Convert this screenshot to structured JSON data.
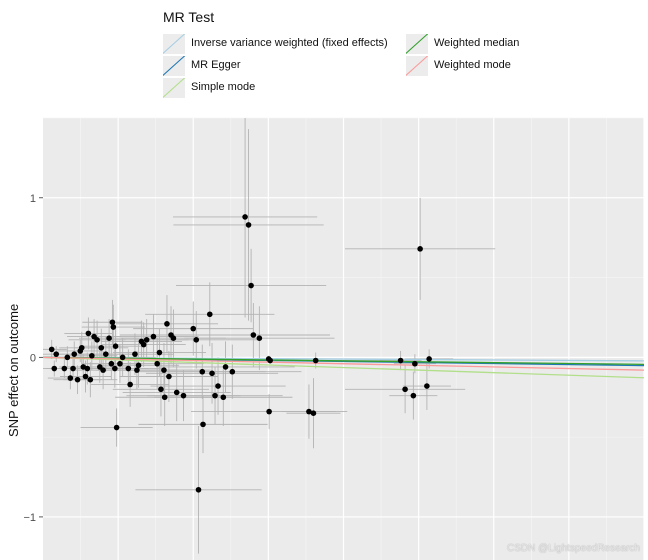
{
  "legend": {
    "title": "MR Test",
    "items": [
      {
        "label": "Inverse variance weighted (fixed effects)",
        "color": "#a6cee3"
      },
      {
        "label": "Weighted median",
        "color": "#33a02c"
      },
      {
        "label": "MR Egger",
        "color": "#1f78b4"
      },
      {
        "label": "Weighted mode",
        "color": "#fb9a99"
      },
      {
        "label": "Simple mode",
        "color": "#b2df8a"
      }
    ]
  },
  "watermark": "CSDN @LightspeedResearch",
  "chart_data": {
    "type": "scatter",
    "ylabel": "SNP effect on outcome",
    "ytick_labels": [
      "1",
      "0",
      "−1"
    ],
    "yticks": [
      1,
      0,
      -1
    ],
    "xlim": [
      0,
      0.4
    ],
    "ylim": [
      -1.27,
      1.5
    ],
    "grid": true,
    "panel_background": "#ebebeb",
    "points": [
      {
        "x": 0.0058,
        "y": 0.05,
        "xe": 0.01,
        "ye": 0.06
      },
      {
        "x": 0.0075,
        "y": -0.07,
        "xe": 0.012,
        "ye": 0.05
      },
      {
        "x": 0.0088,
        "y": 0.02,
        "xe": 0.01,
        "ye": 0.05
      },
      {
        "x": 0.0142,
        "y": -0.07,
        "xe": 0.012,
        "ye": 0.06
      },
      {
        "x": 0.0162,
        "y": 0.0,
        "xe": 0.014,
        "ye": 0.07
      },
      {
        "x": 0.0182,
        "y": -0.13,
        "xe": 0.015,
        "ye": 0.07
      },
      {
        "x": 0.02,
        "y": -0.07,
        "xe": 0.013,
        "ye": 0.06
      },
      {
        "x": 0.0208,
        "y": 0.02,
        "xe": 0.014,
        "ye": 0.08
      },
      {
        "x": 0.023,
        "y": -0.14,
        "xe": 0.016,
        "ye": 0.09
      },
      {
        "x": 0.0248,
        "y": 0.04,
        "xe": 0.015,
        "ye": 0.07
      },
      {
        "x": 0.0258,
        "y": 0.06,
        "xe": 0.015,
        "ye": 0.1
      },
      {
        "x": 0.0268,
        "y": -0.06,
        "xe": 0.016,
        "ye": 0.08
      },
      {
        "x": 0.0283,
        "y": -0.12,
        "xe": 0.017,
        "ye": 0.1
      },
      {
        "x": 0.0295,
        "y": -0.07,
        "xe": 0.015,
        "ye": 0.1
      },
      {
        "x": 0.0302,
        "y": 0.15,
        "xe": 0.016,
        "ye": 0.1
      },
      {
        "x": 0.0315,
        "y": -0.14,
        "xe": 0.018,
        "ye": 0.11
      },
      {
        "x": 0.0325,
        "y": 0.01,
        "xe": 0.017,
        "ye": 0.09
      },
      {
        "x": 0.034,
        "y": 0.13,
        "xe": 0.018,
        "ye": 0.11
      },
      {
        "x": 0.036,
        "y": 0.11,
        "xe": 0.019,
        "ye": 0.12
      },
      {
        "x": 0.0378,
        "y": -0.06,
        "xe": 0.018,
        "ye": 0.1
      },
      {
        "x": 0.0388,
        "y": 0.06,
        "xe": 0.018,
        "ye": 0.12
      },
      {
        "x": 0.04,
        "y": -0.08,
        "xe": 0.02,
        "ye": 0.12
      },
      {
        "x": 0.0418,
        "y": 0.02,
        "xe": 0.019,
        "ye": 0.11
      },
      {
        "x": 0.044,
        "y": 0.12,
        "xe": 0.02,
        "ye": 0.12
      },
      {
        "x": 0.0455,
        "y": -0.04,
        "xe": 0.02,
        "ye": 0.1
      },
      {
        "x": 0.0462,
        "y": 0.22,
        "xe": 0.02,
        "ye": 0.14
      },
      {
        "x": 0.0468,
        "y": 0.19,
        "xe": 0.021,
        "ye": 0.14
      },
      {
        "x": 0.0478,
        "y": -0.07,
        "xe": 0.022,
        "ye": 0.12
      },
      {
        "x": 0.0483,
        "y": 0.07,
        "xe": 0.021,
        "ye": 0.12
      },
      {
        "x": 0.049,
        "y": -0.44,
        "xe": 0.024,
        "ye": 0.12
      },
      {
        "x": 0.0512,
        "y": -0.04,
        "xe": 0.022,
        "ye": 0.12
      },
      {
        "x": 0.053,
        "y": 0.0,
        "xe": 0.022,
        "ye": 0.12
      },
      {
        "x": 0.0568,
        "y": -0.07,
        "xe": 0.024,
        "ye": 0.12
      },
      {
        "x": 0.058,
        "y": -0.17,
        "xe": 0.026,
        "ye": 0.14
      },
      {
        "x": 0.0612,
        "y": 0.02,
        "xe": 0.026,
        "ye": 0.13
      },
      {
        "x": 0.0625,
        "y": -0.08,
        "xe": 0.027,
        "ye": 0.12
      },
      {
        "x": 0.0636,
        "y": -0.05,
        "xe": 0.027,
        "ye": 0.14
      },
      {
        "x": 0.0655,
        "y": 0.1,
        "xe": 0.027,
        "ye": 0.13
      },
      {
        "x": 0.067,
        "y": 0.08,
        "xe": 0.028,
        "ye": 0.14
      },
      {
        "x": 0.069,
        "y": 0.11,
        "xe": 0.028,
        "ye": 0.13
      },
      {
        "x": 0.0735,
        "y": 0.13,
        "xe": 0.03,
        "ye": 0.14
      },
      {
        "x": 0.076,
        "y": -0.04,
        "xe": 0.031,
        "ye": 0.16
      },
      {
        "x": 0.0775,
        "y": 0.03,
        "xe": 0.031,
        "ye": 0.15
      },
      {
        "x": 0.0785,
        "y": -0.2,
        "xe": 0.032,
        "ye": 0.17
      },
      {
        "x": 0.0805,
        "y": -0.08,
        "xe": 0.031,
        "ye": 0.17
      },
      {
        "x": 0.081,
        "y": -0.25,
        "xe": 0.033,
        "ye": 0.18
      },
      {
        "x": 0.0825,
        "y": 0.21,
        "xe": 0.034,
        "ye": 0.18
      },
      {
        "x": 0.0838,
        "y": -0.12,
        "xe": 0.033,
        "ye": 0.16
      },
      {
        "x": 0.0852,
        "y": 0.14,
        "xe": 0.034,
        "ye": 0.18
      },
      {
        "x": 0.0868,
        "y": 0.12,
        "xe": 0.035,
        "ye": 0.18
      },
      {
        "x": 0.089,
        "y": -0.22,
        "xe": 0.036,
        "ye": 0.18
      },
      {
        "x": 0.0935,
        "y": -0.24,
        "xe": 0.038,
        "ye": 0.16
      },
      {
        "x": 0.1,
        "y": 0.18,
        "xe": 0.04,
        "ye": 0.17
      },
      {
        "x": 0.102,
        "y": 0.11,
        "xe": 0.041,
        "ye": 0.18
      },
      {
        "x": 0.1035,
        "y": -0.83,
        "xe": 0.042,
        "ye": 0.4
      },
      {
        "x": 0.106,
        "y": -0.09,
        "xe": 0.042,
        "ye": 0.17
      },
      {
        "x": 0.1065,
        "y": -0.42,
        "xe": 0.043,
        "ye": 0.18
      },
      {
        "x": 0.111,
        "y": 0.27,
        "xe": 0.043,
        "ye": 0.2
      },
      {
        "x": 0.1125,
        "y": -0.1,
        "xe": 0.044,
        "ye": 0.19
      },
      {
        "x": 0.1145,
        "y": -0.24,
        "xe": 0.045,
        "ye": 0.18
      },
      {
        "x": 0.1165,
        "y": -0.18,
        "xe": 0.045,
        "ye": 0.18
      },
      {
        "x": 0.12,
        "y": -0.25,
        "xe": 0.046,
        "ye": 0.18
      },
      {
        "x": 0.1215,
        "y": -0.06,
        "xe": 0.046,
        "ye": 0.16
      },
      {
        "x": 0.126,
        "y": -0.09,
        "xe": 0.046,
        "ye": 0.17
      },
      {
        "x": 0.1345,
        "y": 0.88,
        "xe": 0.048,
        "ye": 0.63
      },
      {
        "x": 0.1368,
        "y": 0.83,
        "xe": 0.05,
        "ye": 0.6
      },
      {
        "x": 0.1385,
        "y": 0.45,
        "xe": 0.05,
        "ye": 0.23
      },
      {
        "x": 0.14,
        "y": 0.14,
        "xe": 0.051,
        "ye": 0.2
      },
      {
        "x": 0.144,
        "y": 0.12,
        "xe": 0.05,
        "ye": 0.2
      },
      {
        "x": 0.1502,
        "y": -0.01,
        "xe": 0.003,
        "ye": 0.02
      },
      {
        "x": 0.1512,
        "y": -0.02,
        "xe": 0.003,
        "ye": 0.02
      },
      {
        "x": 0.1505,
        "y": -0.34,
        "xe": 0.052,
        "ye": 0.11
      },
      {
        "x": 0.177,
        "y": -0.34,
        "xe": 0.018,
        "ye": 0.17
      },
      {
        "x": 0.18,
        "y": -0.35,
        "xe": 0.018,
        "ye": 0.22
      },
      {
        "x": 0.1815,
        "y": -0.02,
        "xe": 0.055,
        "ye": 0.05
      },
      {
        "x": 0.238,
        "y": -0.02,
        "xe": 0.014,
        "ye": 0.06
      },
      {
        "x": 0.241,
        "y": -0.2,
        "xe": 0.04,
        "ye": 0.15
      },
      {
        "x": 0.2465,
        "y": -0.24,
        "xe": 0.016,
        "ye": 0.15
      },
      {
        "x": 0.2475,
        "y": -0.04,
        "xe": 0.014,
        "ye": 0.06
      },
      {
        "x": 0.251,
        "y": 0.68,
        "xe": 0.05,
        "ye": 0.32
      },
      {
        "x": 0.2555,
        "y": -0.18,
        "xe": 0.016,
        "ye": 0.15
      },
      {
        "x": 0.257,
        "y": -0.01,
        "xe": 0.016,
        "ye": 0.06
      }
    ],
    "lines": [
      {
        "name": "Inverse variance weighted (fixed effects)",
        "slope": -0.055,
        "color": "#a6cee3"
      },
      {
        "name": "MR Egger",
        "intercept": 0.0,
        "slope": -0.13,
        "color": "#1f78b4"
      },
      {
        "name": "Simple mode",
        "slope": -0.32,
        "color": "#b2df8a"
      },
      {
        "name": "Weighted median",
        "slope": -0.11,
        "color": "#33a02c"
      },
      {
        "name": "Weighted mode",
        "slope": -0.2,
        "color": "#fb9a99"
      }
    ]
  }
}
